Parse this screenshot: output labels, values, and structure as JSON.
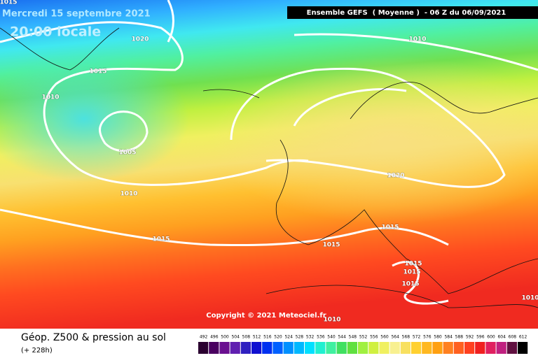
{
  "header": {
    "date": "Mercredi 15 septembre 2021",
    "time": "20:00 locale",
    "model": "Ensemble GEFS  ( Moyenne )  - 06 Z du 06/09/2021"
  },
  "copyright": "Copyright © 2021 Meteociel.fr",
  "isobar_labels": [
    "1015",
    "1020",
    "1010",
    "1015",
    "1010",
    "1005",
    "1010",
    "1020",
    "1015",
    "1015",
    "1015",
    "1015",
    "1015",
    "1015",
    "1010",
    "1010"
  ],
  "legend": {
    "title": "Géop. Z500 & pression au sol",
    "subtitle": "(+ 228h)",
    "ticks": [
      492,
      496,
      500,
      504,
      508,
      512,
      516,
      520,
      524,
      528,
      532,
      536,
      540,
      544,
      548,
      552,
      556,
      560,
      564,
      568,
      572,
      576,
      580,
      584,
      588,
      592,
      596,
      600,
      604,
      608,
      612
    ],
    "colors": [
      "#2a0030",
      "#4a0060",
      "#6a1090",
      "#6020b0",
      "#3020c0",
      "#1010d0",
      "#0030f0",
      "#0060ff",
      "#0090ff",
      "#00b8ff",
      "#00e0ff",
      "#20f0d0",
      "#40f0a0",
      "#40e060",
      "#60e040",
      "#a0f040",
      "#d0f040",
      "#f0f060",
      "#f8f090",
      "#f8e060",
      "#ffd030",
      "#ffb820",
      "#ffa010",
      "#ff8020",
      "#ff6020",
      "#ff4020",
      "#f02020",
      "#e02060",
      "#c02080",
      "#601040",
      "#000000"
    ]
  }
}
